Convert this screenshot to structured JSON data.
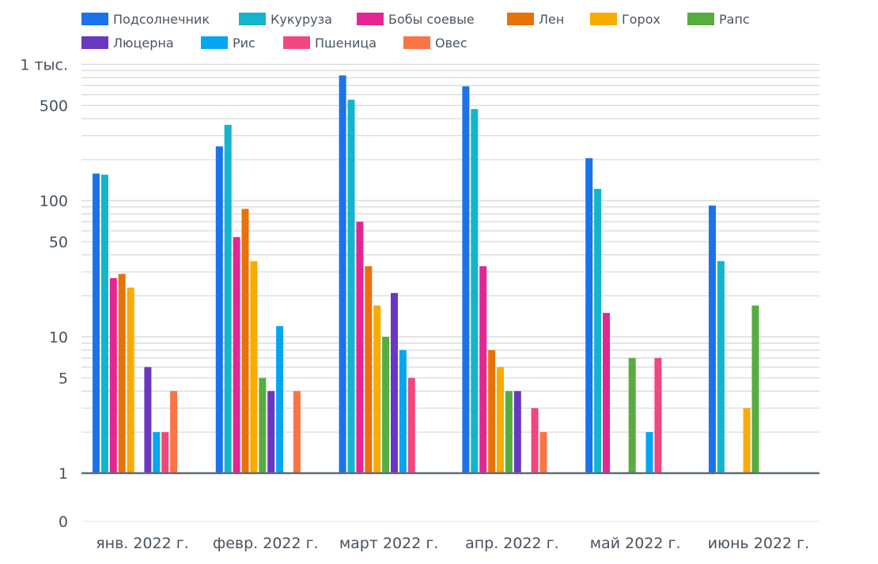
{
  "chart_data": {
    "type": "bar",
    "y_scale": "log",
    "grid": true,
    "legend_position": "top",
    "categories": [
      "янв. 2022 г.",
      "февр. 2022 г.",
      "март 2022 г.",
      "апр. 2022 г.",
      "май 2022 г.",
      "июнь 2022 г."
    ],
    "y_ticks": [
      {
        "value": 0,
        "label": "0"
      },
      {
        "value": 1,
        "label": "1"
      },
      {
        "value": 5,
        "label": "5"
      },
      {
        "value": 10,
        "label": "10"
      },
      {
        "value": 50,
        "label": "50"
      },
      {
        "value": 100,
        "label": "100"
      },
      {
        "value": 500,
        "label": "500"
      },
      {
        "value": 1000,
        "label": "1 тыс."
      }
    ],
    "series": [
      {
        "name": "Подсолнечник",
        "color": "#1a73e8",
        "values": [
          158,
          250,
          830,
          690,
          205,
          92
        ]
      },
      {
        "name": "Кукуруза",
        "color": "#12b5cb",
        "values": [
          155,
          360,
          550,
          470,
          122,
          36
        ]
      },
      {
        "name": "Бобы соевые",
        "color": "#e52592",
        "values": [
          27,
          54,
          70,
          33,
          15,
          null
        ]
      },
      {
        "name": "Лен",
        "color": "#e8710a",
        "values": [
          29,
          87,
          33,
          8,
          null,
          null
        ]
      },
      {
        "name": "Горох",
        "color": "#f9ab00",
        "values": [
          23,
          36,
          17,
          6,
          null,
          3
        ]
      },
      {
        "name": "Рапс",
        "color": "#57ad3f",
        "values": [
          null,
          5,
          10,
          4,
          7,
          17
        ]
      },
      {
        "name": "Люцерна",
        "color": "#6a38c0",
        "values": [
          6,
          4,
          21,
          4,
          null,
          null
        ]
      },
      {
        "name": "Рис",
        "color": "#05a6f0",
        "values": [
          2,
          12,
          8,
          null,
          2,
          null
        ]
      },
      {
        "name": "Пшеница",
        "color": "#f2477e",
        "values": [
          2,
          null,
          5,
          3,
          7,
          null
        ]
      },
      {
        "name": "Овес",
        "color": "#fa7444",
        "values": [
          4,
          4,
          null,
          2,
          null,
          null
        ]
      }
    ]
  }
}
